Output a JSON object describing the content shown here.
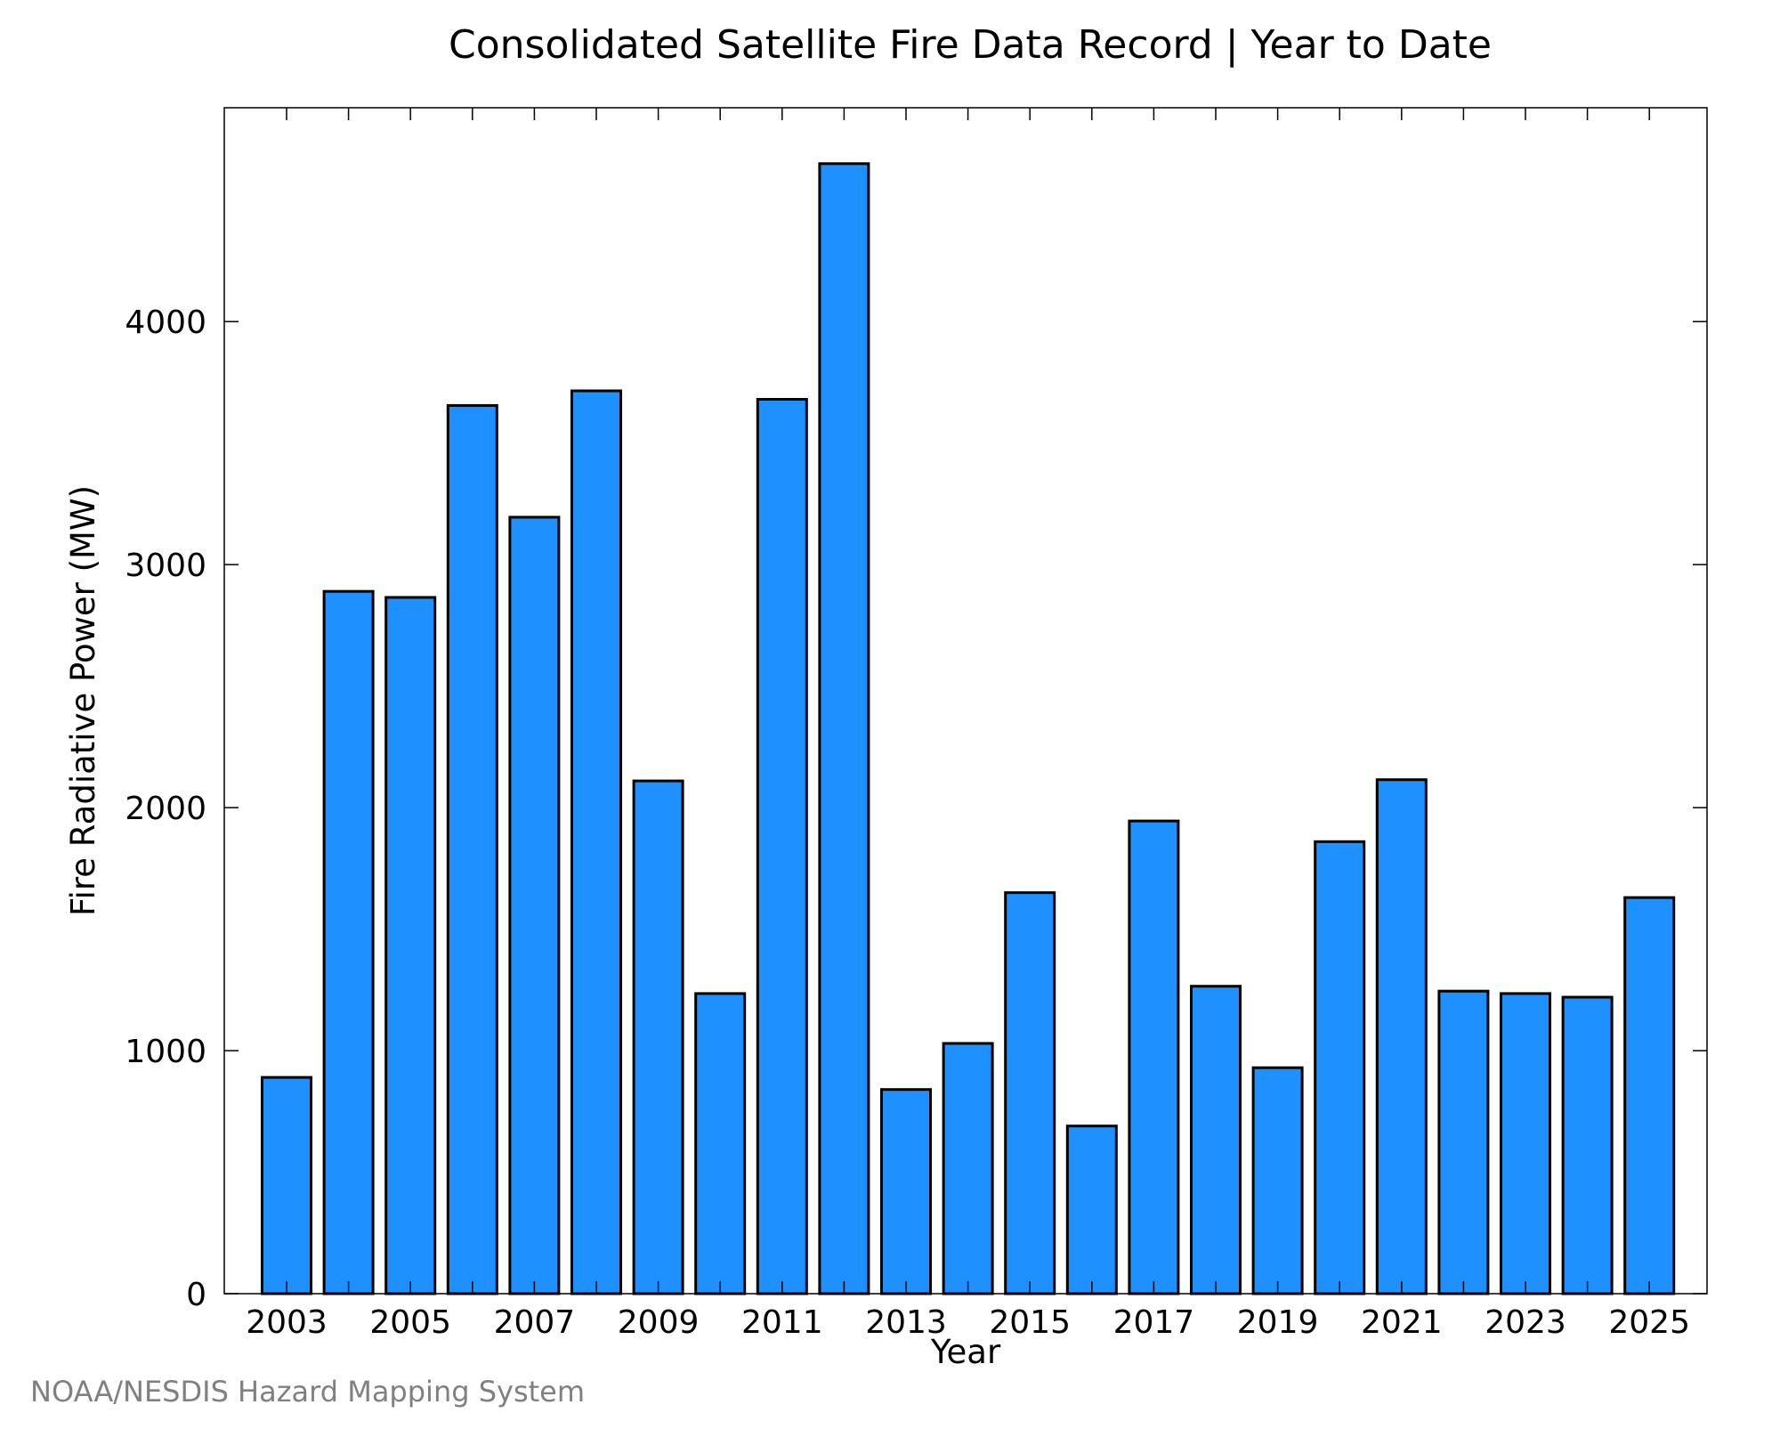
{
  "chart_data": {
    "type": "bar",
    "title": "Consolidated Satellite Fire Data Record | Year to Date",
    "xlabel": "Year",
    "ylabel": "Fire Radiative Power (MW)",
    "categories": [
      "2003",
      "2004",
      "2005",
      "2006",
      "2007",
      "2008",
      "2009",
      "2010",
      "2011",
      "2012",
      "2013",
      "2014",
      "2015",
      "2016",
      "2017",
      "2018",
      "2019",
      "2020",
      "2021",
      "2022",
      "2023",
      "2024",
      "2025"
    ],
    "values": [
      890,
      2890,
      2865,
      3655,
      3195,
      3715,
      2110,
      1235,
      3680,
      4650,
      840,
      1030,
      1650,
      690,
      1945,
      1265,
      930,
      1860,
      2115,
      1245,
      1235,
      1220,
      1630
    ],
    "x_tick_labels": [
      "2003",
      "2005",
      "2007",
      "2009",
      "2011",
      "2013",
      "2015",
      "2017",
      "2019",
      "2021",
      "2023",
      "2025"
    ],
    "y_tick_labels": [
      "0",
      "1000",
      "2000",
      "3000",
      "4000"
    ],
    "y_ticks": [
      0,
      1000,
      2000,
      3000,
      4000
    ],
    "ylim": [
      0,
      4880
    ],
    "grid": false,
    "colors": {
      "bar_fill": "#1e90ff",
      "bar_edge": "#000000",
      "frame": "#000000",
      "credit_text": "#808080"
    }
  },
  "source_credit": "NOAA/NESDIS Hazard Mapping System"
}
